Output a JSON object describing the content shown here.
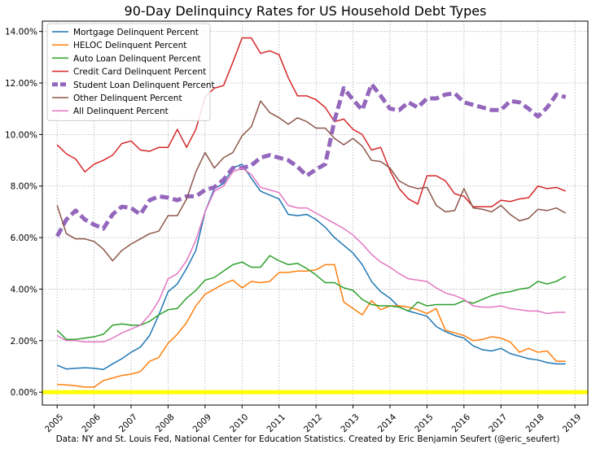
{
  "chart_data": {
    "type": "line",
    "title": "90-Day Delinquincy Rates for US Household Debt Types",
    "caption": "Data: NY and St. Louis Fed, National Center for Education Statistics. Created by Eric Benjamin Seufert (@eric_seufert)",
    "x_ticks": [
      "2005",
      "2006",
      "2007",
      "2008",
      "2009",
      "2010",
      "2011",
      "2012",
      "2013",
      "2014",
      "2015",
      "2016",
      "2017",
      "2018",
      "2019"
    ],
    "y_ticks": [
      "0.00%",
      "2.00%",
      "4.00%",
      "6.00%",
      "8.00%",
      "10.00%",
      "12.00%",
      "14.00%"
    ],
    "xlim": [
      2004.6,
      2019.35
    ],
    "ylim": [
      -0.5,
      14.4
    ],
    "grid": true,
    "legend_position": "top-left",
    "reference_line": {
      "y": 0,
      "color": "#ffff00"
    },
    "x": [
      2005.0,
      2005.25,
      2005.5,
      2005.75,
      2006.0,
      2006.25,
      2006.5,
      2006.75,
      2007.0,
      2007.25,
      2007.5,
      2007.75,
      2008.0,
      2008.25,
      2008.5,
      2008.75,
      2009.0,
      2009.25,
      2009.5,
      2009.75,
      2010.0,
      2010.25,
      2010.5,
      2010.75,
      2011.0,
      2011.25,
      2011.5,
      2011.75,
      2012.0,
      2012.25,
      2012.5,
      2012.75,
      2013.0,
      2013.25,
      2013.5,
      2013.75,
      2014.0,
      2014.25,
      2014.5,
      2014.75,
      2015.0,
      2015.25,
      2015.5,
      2015.75,
      2016.0,
      2016.25,
      2016.5,
      2016.75,
      2017.0,
      2017.25,
      2017.5,
      2017.75,
      2018.0,
      2018.25,
      2018.5,
      2018.75
    ],
    "series": [
      {
        "name": "Mortgage Delinquent Percent",
        "color": "#1f77b4",
        "width": 1.5,
        "values": [
          1.05,
          0.9,
          0.93,
          0.95,
          0.93,
          0.88,
          1.1,
          1.3,
          1.55,
          1.75,
          2.2,
          3.0,
          3.9,
          4.2,
          4.8,
          5.5,
          7.0,
          7.9,
          8.1,
          8.7,
          8.85,
          8.3,
          7.8,
          7.65,
          7.5,
          6.9,
          6.85,
          6.9,
          6.7,
          6.4,
          6.0,
          5.7,
          5.4,
          4.95,
          4.3,
          3.9,
          3.65,
          3.3,
          3.15,
          3.05,
          2.95,
          2.55,
          2.35,
          2.2,
          2.1,
          1.8,
          1.65,
          1.6,
          1.7,
          1.5,
          1.4,
          1.3,
          1.25,
          1.15,
          1.1,
          1.1
        ]
      },
      {
        "name": "HELOC Delinquent Percent",
        "color": "#ff7f0e",
        "width": 1.5,
        "values": [
          0.3,
          0.28,
          0.25,
          0.2,
          0.2,
          0.45,
          0.55,
          0.65,
          0.7,
          0.8,
          1.2,
          1.35,
          1.9,
          2.25,
          2.7,
          3.35,
          3.8,
          4.0,
          4.2,
          4.35,
          4.05,
          4.3,
          4.25,
          4.3,
          4.65,
          4.65,
          4.7,
          4.7,
          4.75,
          4.95,
          4.95,
          3.5,
          3.25,
          3.0,
          3.55,
          3.2,
          3.35,
          3.35,
          3.3,
          3.2,
          3.05,
          3.25,
          2.4,
          2.3,
          2.2,
          2.0,
          2.05,
          2.15,
          2.1,
          1.95,
          1.55,
          1.7,
          1.55,
          1.6,
          1.2,
          1.2
        ]
      },
      {
        "name": "Auto Loan Delinquent Percent",
        "color": "#2ca02c",
        "width": 1.5,
        "values": [
          2.4,
          2.05,
          2.05,
          2.1,
          2.15,
          2.25,
          2.6,
          2.65,
          2.6,
          2.6,
          2.75,
          3.0,
          3.2,
          3.25,
          3.65,
          3.95,
          4.35,
          4.45,
          4.7,
          4.95,
          5.05,
          4.85,
          4.85,
          5.3,
          5.1,
          4.95,
          5.0,
          4.8,
          4.55,
          4.25,
          4.25,
          4.05,
          3.95,
          3.6,
          3.4,
          3.35,
          3.35,
          3.3,
          3.15,
          3.5,
          3.35,
          3.4,
          3.4,
          3.4,
          3.55,
          3.45,
          3.6,
          3.75,
          3.85,
          3.9,
          4.0,
          4.05,
          4.3,
          4.2,
          4.3,
          4.5
        ]
      },
      {
        "name": "Credit Card Delinquent Percent",
        "color": "#d62728",
        "width": 1.5,
        "values": [
          9.6,
          9.25,
          9.05,
          8.55,
          8.85,
          9.0,
          9.2,
          9.65,
          9.75,
          9.4,
          9.35,
          9.5,
          9.5,
          10.2,
          9.5,
          10.2,
          11.45,
          11.8,
          11.9,
          12.8,
          13.75,
          13.75,
          13.15,
          13.25,
          13.1,
          12.2,
          11.5,
          11.5,
          11.35,
          11.05,
          10.5,
          10.6,
          10.2,
          10.0,
          9.4,
          9.5,
          8.6,
          7.9,
          7.5,
          7.3,
          8.4,
          8.4,
          8.2,
          7.7,
          7.6,
          7.2,
          7.2,
          7.2,
          7.45,
          7.4,
          7.5,
          7.55,
          8.0,
          7.9,
          7.95,
          7.8
        ]
      },
      {
        "name": "Student Loan Delinquent Percent",
        "color": "#9467bd",
        "width": 5,
        "dashed": true,
        "values": [
          6.05,
          6.7,
          7.05,
          6.7,
          6.5,
          6.35,
          6.9,
          7.2,
          7.15,
          6.9,
          7.45,
          7.6,
          7.55,
          7.45,
          7.6,
          7.6,
          7.85,
          7.95,
          8.25,
          8.7,
          8.7,
          8.8,
          9.1,
          9.2,
          9.1,
          9.0,
          8.75,
          8.4,
          8.65,
          8.85,
          10.55,
          11.8,
          11.35,
          10.95,
          11.95,
          11.5,
          11.0,
          10.95,
          11.25,
          11.05,
          11.4,
          11.4,
          11.55,
          11.6,
          11.25,
          11.15,
          11.05,
          10.95,
          10.95,
          11.3,
          11.25,
          11.0,
          10.7,
          11.05,
          11.55,
          11.45
        ]
      },
      {
        "name": "Other Delinquent Percent",
        "color": "#8c564b",
        "width": 1.5,
        "values": [
          7.25,
          6.15,
          5.95,
          5.95,
          5.85,
          5.55,
          5.1,
          5.5,
          5.75,
          5.95,
          6.15,
          6.25,
          6.85,
          6.85,
          7.5,
          8.55,
          9.3,
          8.7,
          9.1,
          9.3,
          9.95,
          10.3,
          11.3,
          10.85,
          10.65,
          10.4,
          10.65,
          10.5,
          10.25,
          10.25,
          9.85,
          9.6,
          9.85,
          9.55,
          9.0,
          8.95,
          8.7,
          8.2,
          8.0,
          7.9,
          7.95,
          7.25,
          7.0,
          7.05,
          7.9,
          7.15,
          7.1,
          7.0,
          7.25,
          6.9,
          6.65,
          6.75,
          7.1,
          7.05,
          7.15,
          6.95
        ]
      },
      {
        "name": "All Delinquent Percent",
        "color": "#e377c2",
        "width": 1.5,
        "values": [
          2.2,
          2.0,
          2.0,
          1.95,
          1.95,
          1.95,
          2.1,
          2.3,
          2.45,
          2.6,
          3.0,
          3.55,
          4.4,
          4.6,
          5.1,
          5.9,
          7.0,
          7.8,
          8.0,
          8.55,
          8.7,
          8.45,
          7.95,
          7.85,
          7.75,
          7.25,
          7.15,
          7.15,
          6.95,
          6.75,
          6.55,
          6.35,
          6.1,
          5.75,
          5.35,
          5.05,
          4.85,
          4.6,
          4.4,
          4.35,
          4.3,
          4.05,
          3.85,
          3.75,
          3.6,
          3.35,
          3.3,
          3.3,
          3.35,
          3.25,
          3.2,
          3.15,
          3.15,
          3.05,
          3.1,
          3.1
        ]
      }
    ]
  }
}
